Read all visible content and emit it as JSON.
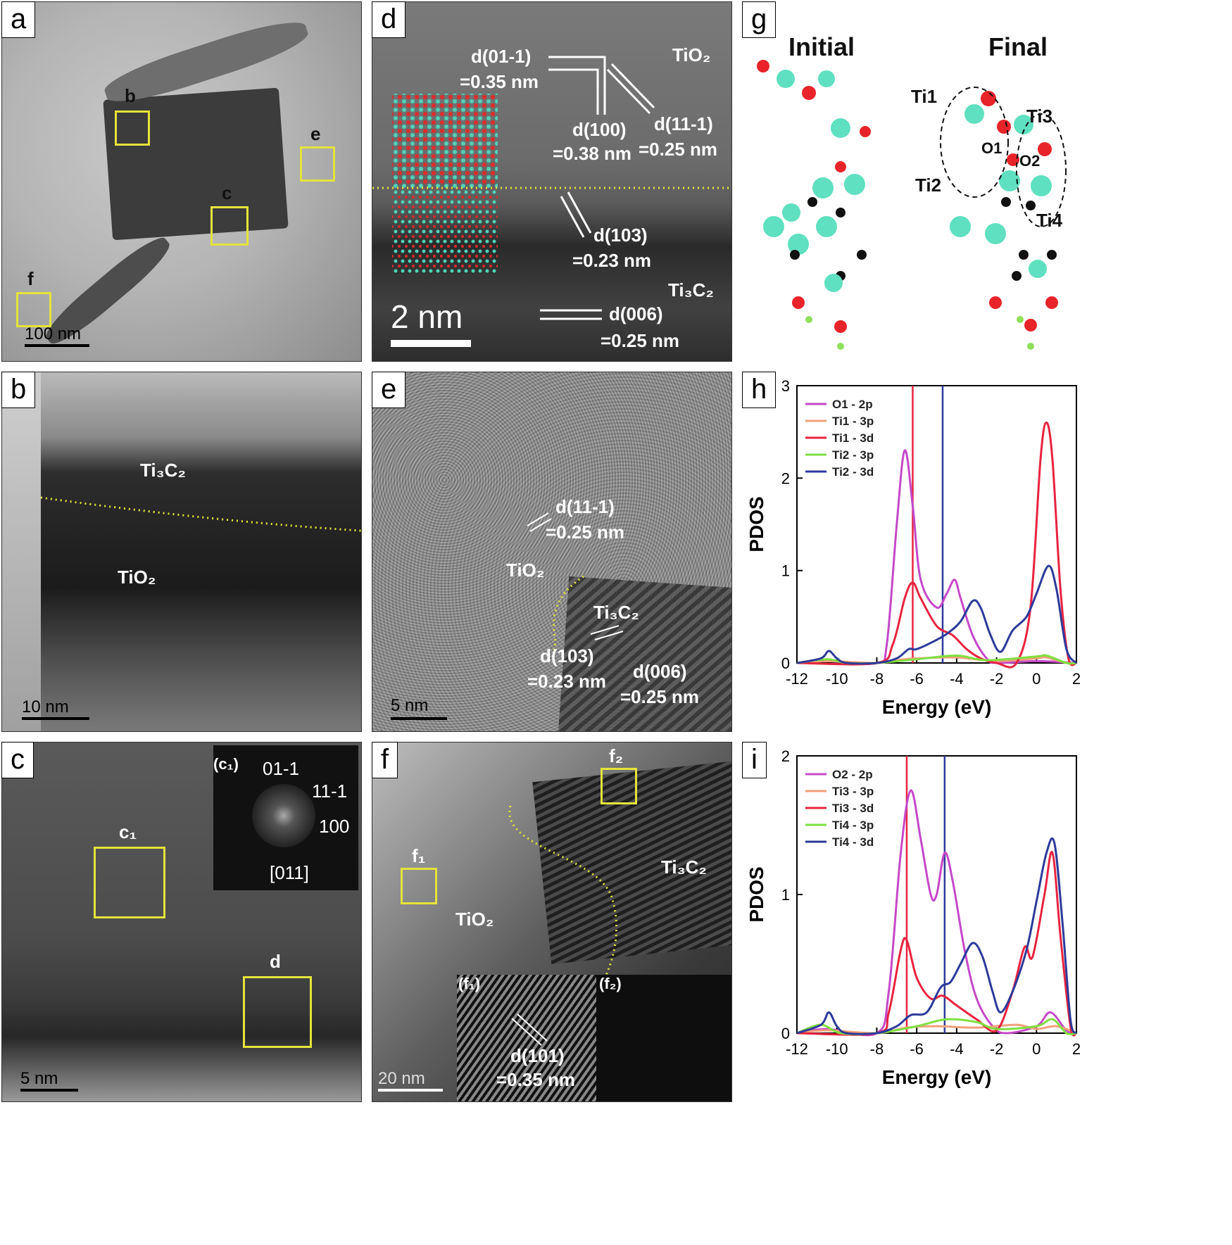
{
  "panels": {
    "a": {
      "label": "a",
      "boxes": [
        "b",
        "c",
        "e",
        "f"
      ],
      "scale": "100 nm"
    },
    "b": {
      "label": "b",
      "ti3c2": "Ti₃C₂",
      "tio2": "TiO₂",
      "scale": "10 nm"
    },
    "c": {
      "label": "c",
      "inset_label": "(c₁)",
      "inset_indices": [
        "01-1",
        "11-1",
        "100"
      ],
      "zone": "[011]",
      "box_c1": "c₁",
      "box_d": "d",
      "scale": "5 nm"
    },
    "d": {
      "label": "d",
      "tio2": "TiO₂",
      "ti3c2": "Ti₃C₂",
      "d1": "d(01-1)",
      "d1v": "=0.35 nm",
      "d2": "d(100)",
      "d2v": "=0.38 nm",
      "d3": "d(11-1)",
      "d3v": "=0.25 nm",
      "d4": "d(103)",
      "d4v": "=0.23 nm",
      "d5": "d(006)",
      "d5v": "=0.25 nm",
      "scale": "2 nm"
    },
    "e": {
      "label": "e",
      "tio2": "TiO₂",
      "ti3c2": "Ti₃C₂",
      "d1": "d(11-1)",
      "d1v": "=0.25 nm",
      "d2": "d(103)",
      "d2v": "=0.23 nm",
      "d3": "d(006)",
      "d3v": "=0.25 nm",
      "scale": "5 nm"
    },
    "f": {
      "label": "f",
      "f1": "f₁",
      "f2": "f₂",
      "tio2": "TiO₂",
      "ti3c2": "Ti₃C₂",
      "inset1": "(f₁)",
      "inset2": "(f₂)",
      "d1": "d(101)",
      "d1v": "=0.35 nm",
      "scale": "20 nm"
    },
    "g": {
      "label": "g",
      "initial": "Initial",
      "final": "Final",
      "atoms": [
        "Ti1",
        "Ti3",
        "O1",
        "O2",
        "Ti2",
        "Ti4"
      ]
    }
  },
  "chart_data": [
    {
      "panel": "h",
      "type": "line",
      "xlabel": "Energy (eV)",
      "ylabel": "PDOS",
      "xlim": [
        -12,
        2
      ],
      "ylim": [
        0,
        3
      ],
      "xticks": [
        -12,
        -10,
        -8,
        -6,
        -4,
        -2,
        0,
        2
      ],
      "yticks": [
        0,
        1,
        2,
        3
      ],
      "legend_position": "top-left",
      "vlines": [
        {
          "x": -6.2,
          "color": "#e8233f"
        },
        {
          "x": -4.7,
          "color": "#2d3a9a"
        }
      ],
      "series": [
        {
          "name": "O1 - 2p",
          "color": "#c548c8",
          "points": [
            [
              -12,
              0
            ],
            [
              -10.5,
              0.02
            ],
            [
              -8,
              0
            ],
            [
              -7.5,
              0.2
            ],
            [
              -7,
              1.5
            ],
            [
              -6.6,
              2.3
            ],
            [
              -6.2,
              1.7
            ],
            [
              -5.8,
              0.9
            ],
            [
              -5,
              0.6
            ],
            [
              -4.5,
              0.75
            ],
            [
              -4.1,
              0.9
            ],
            [
              -3.8,
              0.7
            ],
            [
              -3.2,
              0.3
            ],
            [
              -2.5,
              0.05
            ],
            [
              -2,
              0
            ],
            [
              0,
              0.02
            ],
            [
              2,
              0
            ]
          ]
        },
        {
          "name": "Ti1 - 3p",
          "color": "#f2a07a",
          "points": [
            [
              -12,
              0
            ],
            [
              -10.5,
              0.02
            ],
            [
              -8,
              0
            ],
            [
              -7,
              0.03
            ],
            [
              -6,
              0.05
            ],
            [
              -4,
              0.06
            ],
            [
              -2,
              0.02
            ],
            [
              0,
              0.05
            ],
            [
              0.5,
              0.06
            ],
            [
              1.5,
              0
            ],
            [
              2,
              0
            ]
          ]
        },
        {
          "name": "Ti1 - 3d",
          "color": "#e8233f",
          "points": [
            [
              -12,
              0
            ],
            [
              -8,
              0
            ],
            [
              -7.2,
              0.2
            ],
            [
              -6.6,
              0.7
            ],
            [
              -6.2,
              0.87
            ],
            [
              -5.8,
              0.7
            ],
            [
              -5,
              0.4
            ],
            [
              -4.2,
              0.3
            ],
            [
              -3.5,
              0.15
            ],
            [
              -2.8,
              0.05
            ],
            [
              -2,
              0
            ],
            [
              -1,
              0
            ],
            [
              -0.3,
              0.6
            ],
            [
              0.2,
              2.2
            ],
            [
              0.5,
              2.6
            ],
            [
              0.8,
              2.2
            ],
            [
              1.2,
              0.8
            ],
            [
              1.6,
              0.05
            ],
            [
              2,
              0
            ]
          ]
        },
        {
          "name": "Ti2 - 3p",
          "color": "#7fe040",
          "points": [
            [
              -12,
              0
            ],
            [
              -10.5,
              0.04
            ],
            [
              -9.5,
              0
            ],
            [
              -8,
              0
            ],
            [
              -6,
              0.04
            ],
            [
              -4,
              0.08
            ],
            [
              -2.5,
              0.03
            ],
            [
              0,
              0.07
            ],
            [
              0.5,
              0.08
            ],
            [
              1.5,
              0
            ],
            [
              2,
              0
            ]
          ]
        },
        {
          "name": "Ti2 - 3d",
          "color": "#2d3a9a",
          "points": [
            [
              -12,
              0
            ],
            [
              -10.8,
              0.05
            ],
            [
              -10.4,
              0.13
            ],
            [
              -10,
              0.05
            ],
            [
              -9.5,
              0
            ],
            [
              -8,
              0
            ],
            [
              -7,
              0.05
            ],
            [
              -6.4,
              0.15
            ],
            [
              -6,
              0.15
            ],
            [
              -5,
              0.25
            ],
            [
              -4.4,
              0.33
            ],
            [
              -3.8,
              0.45
            ],
            [
              -3.2,
              0.67
            ],
            [
              -2.8,
              0.6
            ],
            [
              -2.3,
              0.3
            ],
            [
              -1.8,
              0.12
            ],
            [
              -1.2,
              0.35
            ],
            [
              -0.5,
              0.5
            ],
            [
              0,
              0.75
            ],
            [
              0.6,
              1.05
            ],
            [
              1,
              0.8
            ],
            [
              1.5,
              0.15
            ],
            [
              2,
              0
            ]
          ]
        }
      ]
    },
    {
      "panel": "i",
      "type": "line",
      "xlabel": "Energy (eV)",
      "ylabel": "PDOS",
      "xlim": [
        -12,
        2
      ],
      "ylim": [
        0,
        2
      ],
      "xticks": [
        -12,
        -10,
        -8,
        -6,
        -4,
        -2,
        0,
        2
      ],
      "yticks": [
        0,
        1,
        2
      ],
      "legend_position": "top-left",
      "vlines": [
        {
          "x": -6.5,
          "color": "#e8233f"
        },
        {
          "x": -4.6,
          "color": "#2d3a9a"
        }
      ],
      "series": [
        {
          "name": "O2 - 2p",
          "color": "#c548c8",
          "points": [
            [
              -12,
              0
            ],
            [
              -10.5,
              0.03
            ],
            [
              -8,
              0
            ],
            [
              -7.4,
              0.3
            ],
            [
              -6.8,
              1.3
            ],
            [
              -6.3,
              1.75
            ],
            [
              -5.8,
              1.4
            ],
            [
              -5.3,
              1.0
            ],
            [
              -5,
              1.0
            ],
            [
              -4.6,
              1.3
            ],
            [
              -4.2,
              1.1
            ],
            [
              -3.6,
              0.6
            ],
            [
              -3,
              0.25
            ],
            [
              -2.2,
              0.05
            ],
            [
              -1.5,
              0
            ],
            [
              0,
              0.05
            ],
            [
              0.7,
              0.15
            ],
            [
              1.5,
              0.02
            ],
            [
              2,
              0
            ]
          ]
        },
        {
          "name": "Ti3 - 3p",
          "color": "#f2a07a",
          "points": [
            [
              -12,
              0
            ],
            [
              -10.5,
              0.02
            ],
            [
              -8,
              0
            ],
            [
              -6.5,
              0.04
            ],
            [
              -5,
              0.05
            ],
            [
              -3,
              0.04
            ],
            [
              -1,
              0.06
            ],
            [
              0,
              0.03
            ],
            [
              1,
              0.05
            ],
            [
              2,
              0
            ]
          ]
        },
        {
          "name": "Ti3 - 3d",
          "color": "#e8233f",
          "points": [
            [
              -12,
              0
            ],
            [
              -8,
              0
            ],
            [
              -7.4,
              0.15
            ],
            [
              -6.8,
              0.6
            ],
            [
              -6.5,
              0.67
            ],
            [
              -6,
              0.4
            ],
            [
              -5.3,
              0.25
            ],
            [
              -4.7,
              0.27
            ],
            [
              -4,
              0.2
            ],
            [
              -3,
              0.1
            ],
            [
              -2,
              0.02
            ],
            [
              -1.2,
              0.3
            ],
            [
              -0.6,
              0.62
            ],
            [
              -0.2,
              0.55
            ],
            [
              0.4,
              1.0
            ],
            [
              0.8,
              1.3
            ],
            [
              1.2,
              0.7
            ],
            [
              1.7,
              0.05
            ],
            [
              2,
              0
            ]
          ]
        },
        {
          "name": "Ti4 - 3p",
          "color": "#7fe040",
          "points": [
            [
              -12,
              0
            ],
            [
              -10.8,
              0.06
            ],
            [
              -9.8,
              0
            ],
            [
              -8,
              0
            ],
            [
              -6,
              0.05
            ],
            [
              -4.5,
              0.1
            ],
            [
              -3,
              0.08
            ],
            [
              -2,
              0.03
            ],
            [
              0,
              0.05
            ],
            [
              0.8,
              0.1
            ],
            [
              1.5,
              0
            ],
            [
              2,
              0
            ]
          ]
        },
        {
          "name": "Ti4 - 3d",
          "color": "#2d3a9a",
          "points": [
            [
              -12,
              0
            ],
            [
              -10.8,
              0.06
            ],
            [
              -10.4,
              0.15
            ],
            [
              -10,
              0.05
            ],
            [
              -9.5,
              0
            ],
            [
              -8,
              0
            ],
            [
              -7,
              0.05
            ],
            [
              -6.3,
              0.13
            ],
            [
              -5.5,
              0.15
            ],
            [
              -4.8,
              0.33
            ],
            [
              -4.3,
              0.37
            ],
            [
              -3.8,
              0.5
            ],
            [
              -3.2,
              0.65
            ],
            [
              -2.7,
              0.55
            ],
            [
              -2.2,
              0.3
            ],
            [
              -1.8,
              0.15
            ],
            [
              -1.2,
              0.3
            ],
            [
              -0.5,
              0.6
            ],
            [
              0,
              0.95
            ],
            [
              0.5,
              1.3
            ],
            [
              0.9,
              1.37
            ],
            [
              1.3,
              0.8
            ],
            [
              1.7,
              0.1
            ],
            [
              2,
              0
            ]
          ]
        }
      ]
    }
  ]
}
